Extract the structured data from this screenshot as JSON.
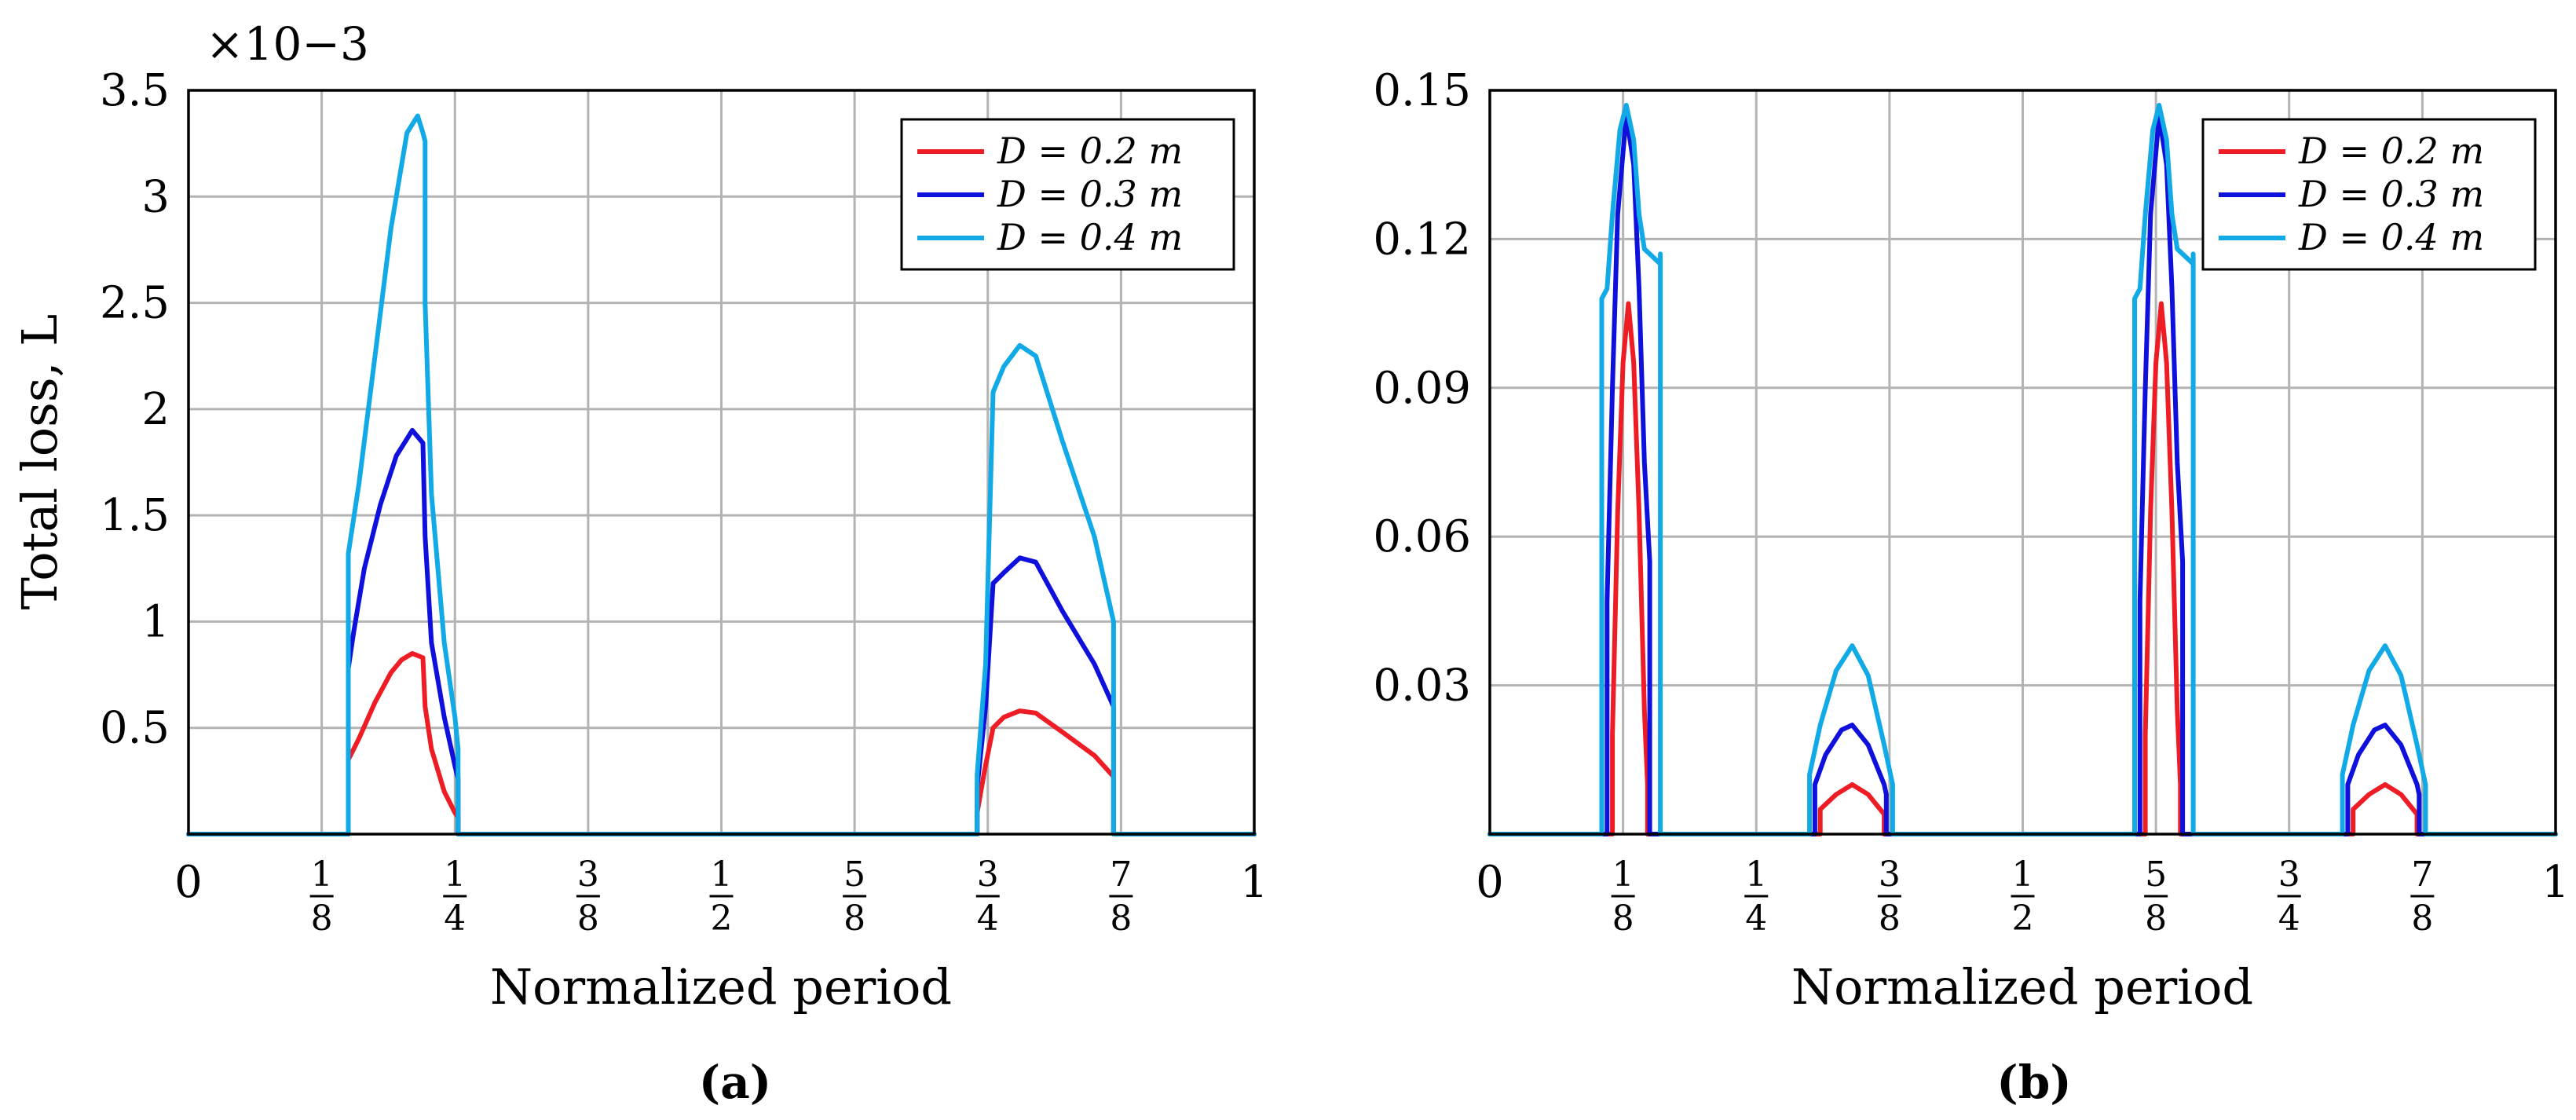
{
  "chart_data": [
    {
      "type": "line",
      "panel_label": "(a)",
      "xlabel": "Normalized period",
      "ylabel": "Total loss, L",
      "y_scale_note": "×10−3",
      "xlim": [
        0,
        1
      ],
      "ylim": [
        0,
        3.5
      ],
      "x_ticks": [
        {
          "v": 0,
          "label": "0"
        },
        {
          "v": 0.125,
          "num": "1",
          "den": "8"
        },
        {
          "v": 0.25,
          "num": "1",
          "den": "4"
        },
        {
          "v": 0.375,
          "num": "3",
          "den": "8"
        },
        {
          "v": 0.5,
          "num": "1",
          "den": "2"
        },
        {
          "v": 0.625,
          "num": "5",
          "den": "8"
        },
        {
          "v": 0.75,
          "num": "3",
          "den": "4"
        },
        {
          "v": 0.875,
          "num": "7",
          "den": "8"
        },
        {
          "v": 1,
          "label": "1"
        }
      ],
      "y_ticks": [
        {
          "v": 0.5,
          "label": "0.5"
        },
        {
          "v": 1,
          "label": "1"
        },
        {
          "v": 1.5,
          "label": "1.5"
        },
        {
          "v": 2,
          "label": "2"
        },
        {
          "v": 2.5,
          "label": "2.5"
        },
        {
          "v": 3,
          "label": "3"
        },
        {
          "v": 3.5,
          "label": "3.5"
        }
      ],
      "legend_position": "top-right",
      "series": [
        {
          "name": "D = 0.2 m",
          "color": "#ee1c24",
          "points": [
            [
              0,
              0
            ],
            [
              0.15,
              0
            ],
            [
              0.15,
              0.35
            ],
            [
              0.16,
              0.45
            ],
            [
              0.175,
              0.62
            ],
            [
              0.19,
              0.76
            ],
            [
              0.2,
              0.82
            ],
            [
              0.21,
              0.85
            ],
            [
              0.22,
              0.83
            ],
            [
              0.222,
              0.6
            ],
            [
              0.228,
              0.4
            ],
            [
              0.24,
              0.2
            ],
            [
              0.25,
              0.1
            ],
            [
              0.253,
              0.08
            ],
            [
              0.253,
              0
            ],
            [
              0.74,
              0
            ],
            [
              0.74,
              0.1
            ],
            [
              0.747,
              0.3
            ],
            [
              0.755,
              0.5
            ],
            [
              0.765,
              0.55
            ],
            [
              0.78,
              0.58
            ],
            [
              0.795,
              0.57
            ],
            [
              0.82,
              0.48
            ],
            [
              0.85,
              0.37
            ],
            [
              0.868,
              0.27
            ],
            [
              0.868,
              0
            ],
            [
              1,
              0
            ]
          ]
        },
        {
          "name": "D = 0.3 m",
          "color": "#1010dd",
          "points": [
            [
              0,
              0
            ],
            [
              0.15,
              0
            ],
            [
              0.15,
              0.78
            ],
            [
              0.155,
              0.95
            ],
            [
              0.165,
              1.25
            ],
            [
              0.18,
              1.55
            ],
            [
              0.195,
              1.78
            ],
            [
              0.21,
              1.9
            ],
            [
              0.22,
              1.84
            ],
            [
              0.222,
              1.4
            ],
            [
              0.228,
              0.9
            ],
            [
              0.24,
              0.55
            ],
            [
              0.25,
              0.32
            ],
            [
              0.253,
              0.26
            ],
            [
              0.253,
              0
            ],
            [
              0.74,
              0
            ],
            [
              0.74,
              0.22
            ],
            [
              0.748,
              0.6
            ],
            [
              0.755,
              1.18
            ],
            [
              0.765,
              1.23
            ],
            [
              0.78,
              1.3
            ],
            [
              0.795,
              1.28
            ],
            [
              0.82,
              1.05
            ],
            [
              0.85,
              0.8
            ],
            [
              0.868,
              0.6
            ],
            [
              0.868,
              0
            ],
            [
              1,
              0
            ]
          ]
        },
        {
          "name": "D = 0.4 m",
          "color": "#11aae6",
          "points": [
            [
              0,
              0
            ],
            [
              0.15,
              0
            ],
            [
              0.15,
              1.32
            ],
            [
              0.16,
              1.65
            ],
            [
              0.175,
              2.25
            ],
            [
              0.19,
              2.85
            ],
            [
              0.205,
              3.3
            ],
            [
              0.215,
              3.38
            ],
            [
              0.22,
              3.3
            ],
            [
              0.222,
              3.26
            ],
            [
              0.222,
              2.5
            ],
            [
              0.228,
              1.6
            ],
            [
              0.24,
              0.9
            ],
            [
              0.25,
              0.55
            ],
            [
              0.253,
              0.4
            ],
            [
              0.253,
              0
            ],
            [
              0.74,
              0
            ],
            [
              0.74,
              0.28
            ],
            [
              0.748,
              0.8
            ],
            [
              0.755,
              2.08
            ],
            [
              0.765,
              2.2
            ],
            [
              0.78,
              2.3
            ],
            [
              0.795,
              2.25
            ],
            [
              0.82,
              1.85
            ],
            [
              0.85,
              1.4
            ],
            [
              0.868,
              1.0
            ],
            [
              0.868,
              0
            ],
            [
              1,
              0
            ]
          ]
        }
      ]
    },
    {
      "type": "line",
      "panel_label": "(b)",
      "xlabel": "Normalized period",
      "ylabel": "",
      "y_scale_note": "",
      "xlim": [
        0,
        1
      ],
      "ylim": [
        0,
        0.15
      ],
      "x_ticks": [
        {
          "v": 0,
          "label": "0"
        },
        {
          "v": 0.125,
          "num": "1",
          "den": "8"
        },
        {
          "v": 0.25,
          "num": "1",
          "den": "4"
        },
        {
          "v": 0.375,
          "num": "3",
          "den": "8"
        },
        {
          "v": 0.5,
          "num": "1",
          "den": "2"
        },
        {
          "v": 0.625,
          "num": "5",
          "den": "8"
        },
        {
          "v": 0.75,
          "num": "3",
          "den": "4"
        },
        {
          "v": 0.875,
          "num": "7",
          "den": "8"
        },
        {
          "v": 1,
          "label": "1"
        }
      ],
      "y_ticks": [
        {
          "v": 0.03,
          "label": "0.03"
        },
        {
          "v": 0.06,
          "label": "0.06"
        },
        {
          "v": 0.09,
          "label": "0.09"
        },
        {
          "v": 0.12,
          "label": "0.12"
        },
        {
          "v": 0.15,
          "label": "0.15"
        }
      ],
      "legend_position": "top-right",
      "series": [
        {
          "name": "D = 0.2 m",
          "color": "#ee1c24",
          "points": [
            [
              0,
              0
            ],
            [
              0.115,
              0
            ],
            [
              0.115,
              0.02
            ],
            [
              0.12,
              0.065
            ],
            [
              0.125,
              0.095
            ],
            [
              0.13,
              0.107
            ],
            [
              0.135,
              0.095
            ],
            [
              0.14,
              0.065
            ],
            [
              0.145,
              0.025
            ],
            [
              0.148,
              0.01
            ],
            [
              0.148,
              0
            ],
            [
              0.31,
              0
            ],
            [
              0.31,
              0.005
            ],
            [
              0.325,
              0.008
            ],
            [
              0.34,
              0.01
            ],
            [
              0.355,
              0.008
            ],
            [
              0.37,
              0.004
            ],
            [
              0.37,
              0
            ],
            [
              0.615,
              0
            ],
            [
              0.615,
              0.02
            ],
            [
              0.62,
              0.065
            ],
            [
              0.625,
              0.095
            ],
            [
              0.63,
              0.107
            ],
            [
              0.635,
              0.095
            ],
            [
              0.64,
              0.065
            ],
            [
              0.645,
              0.025
            ],
            [
              0.648,
              0.01
            ],
            [
              0.648,
              0
            ],
            [
              0.81,
              0
            ],
            [
              0.81,
              0.005
            ],
            [
              0.825,
              0.008
            ],
            [
              0.84,
              0.01
            ],
            [
              0.855,
              0.008
            ],
            [
              0.87,
              0.004
            ],
            [
              0.87,
              0
            ],
            [
              1,
              0
            ]
          ]
        },
        {
          "name": "D = 0.3 m",
          "color": "#1010dd",
          "points": [
            [
              0,
              0
            ],
            [
              0.11,
              0
            ],
            [
              0.11,
              0.047
            ],
            [
              0.115,
              0.09
            ],
            [
              0.12,
              0.125
            ],
            [
              0.128,
              0.145
            ],
            [
              0.135,
              0.135
            ],
            [
              0.14,
              0.11
            ],
            [
              0.145,
              0.075
            ],
            [
              0.15,
              0.055
            ],
            [
              0.15,
              0
            ],
            [
              0.305,
              0
            ],
            [
              0.305,
              0.01
            ],
            [
              0.315,
              0.016
            ],
            [
              0.33,
              0.021
            ],
            [
              0.34,
              0.022
            ],
            [
              0.355,
              0.018
            ],
            [
              0.37,
              0.01
            ],
            [
              0.372,
              0.008
            ],
            [
              0.372,
              0
            ],
            [
              0.61,
              0
            ],
            [
              0.61,
              0.047
            ],
            [
              0.615,
              0.09
            ],
            [
              0.62,
              0.125
            ],
            [
              0.628,
              0.145
            ],
            [
              0.635,
              0.135
            ],
            [
              0.64,
              0.11
            ],
            [
              0.645,
              0.075
            ],
            [
              0.65,
              0.055
            ],
            [
              0.65,
              0
            ],
            [
              0.805,
              0
            ],
            [
              0.805,
              0.01
            ],
            [
              0.815,
              0.016
            ],
            [
              0.83,
              0.021
            ],
            [
              0.84,
              0.022
            ],
            [
              0.855,
              0.018
            ],
            [
              0.87,
              0.01
            ],
            [
              0.872,
              0.008
            ],
            [
              0.872,
              0
            ],
            [
              1,
              0
            ]
          ]
        },
        {
          "name": "D = 0.4 m",
          "color": "#11aae6",
          "points": [
            [
              0,
              0
            ],
            [
              0.105,
              0
            ],
            [
              0.105,
              0.108
            ],
            [
              0.11,
              0.11
            ],
            [
              0.115,
              0.125
            ],
            [
              0.122,
              0.142
            ],
            [
              0.128,
              0.147
            ],
            [
              0.135,
              0.14
            ],
            [
              0.14,
              0.125
            ],
            [
              0.145,
              0.118
            ],
            [
              0.16,
              0.115
            ],
            [
              0.16,
              0.117
            ],
            [
              0.16,
              0
            ],
            [
              0.3,
              0
            ],
            [
              0.3,
              0.012
            ],
            [
              0.31,
              0.022
            ],
            [
              0.325,
              0.033
            ],
            [
              0.34,
              0.038
            ],
            [
              0.355,
              0.032
            ],
            [
              0.37,
              0.018
            ],
            [
              0.378,
              0.01
            ],
            [
              0.378,
              0
            ],
            [
              0.605,
              0
            ],
            [
              0.605,
              0.108
            ],
            [
              0.61,
              0.11
            ],
            [
              0.615,
              0.125
            ],
            [
              0.622,
              0.142
            ],
            [
              0.628,
              0.147
            ],
            [
              0.635,
              0.14
            ],
            [
              0.64,
              0.125
            ],
            [
              0.645,
              0.118
            ],
            [
              0.66,
              0.115
            ],
            [
              0.66,
              0.117
            ],
            [
              0.66,
              0
            ],
            [
              0.8,
              0
            ],
            [
              0.8,
              0.012
            ],
            [
              0.81,
              0.022
            ],
            [
              0.825,
              0.033
            ],
            [
              0.84,
              0.038
            ],
            [
              0.855,
              0.032
            ],
            [
              0.87,
              0.018
            ],
            [
              0.878,
              0.01
            ],
            [
              0.878,
              0
            ],
            [
              1,
              0
            ]
          ]
        }
      ]
    }
  ]
}
